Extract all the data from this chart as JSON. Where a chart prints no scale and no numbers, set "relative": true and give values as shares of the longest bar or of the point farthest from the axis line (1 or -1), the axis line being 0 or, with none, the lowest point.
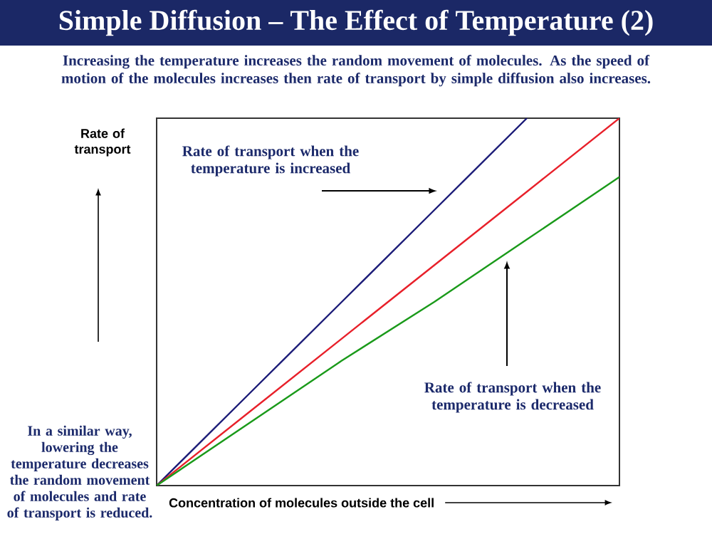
{
  "chart_data": {
    "type": "line",
    "relative": true,
    "title": "Simple Diffusion – The Effect of Temperature (2)",
    "subtitle": "Increasing the temperature increases the random movement of molecules. As the speed of motion of the molecules increases then rate of transport by simple diffusion also increases.",
    "xlabel": "Concentration of molecules outside the cell",
    "ylabel": "Rate of transport",
    "categories": [
      null,
      null,
      null,
      null,
      null,
      null
    ],
    "series": [
      {
        "color": "#1c1c78",
        "values": [
          0,
          0.25,
          0.5,
          0.75,
          1,
          null
        ]
      },
      {
        "color": "#e8202a",
        "values": [
          0,
          0.2,
          0.4,
          0.6,
          0.8,
          1
        ]
      },
      {
        "color": "#1a9a1a",
        "values": [
          0,
          0.17,
          0.34,
          0.5,
          0.67,
          0.84
        ]
      }
    ],
    "annotations": [
      "Rate of transport when the temperature is increased",
      "Rate of transport when the temperature is decreased",
      "In a similar way, lowering the temperature decreases the random movement of molecules and rate of transport is reduced."
    ]
  }
}
